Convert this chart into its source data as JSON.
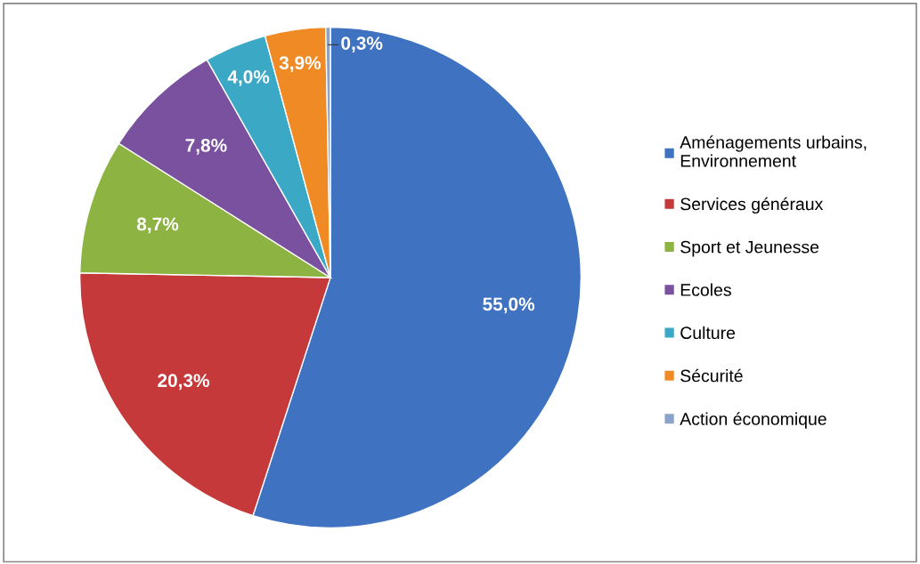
{
  "chart_data": {
    "type": "pie",
    "categories": [
      "Aménagements urbains,\nEnvironnement",
      "Services généraux",
      "Sport et Jeunesse",
      "Ecoles",
      "Culture",
      "Sécurité",
      "Action économique"
    ],
    "values": [
      55.0,
      20.3,
      8.7,
      7.8,
      4.0,
      3.9,
      0.3
    ],
    "colors": [
      "#3f72c0",
      "#c5393a",
      "#8db343",
      "#7a519e",
      "#3ba9c6",
      "#f08a24",
      "#8aa3c8"
    ],
    "value_labels": [
      "55,0%",
      "20,3%",
      "8,7%",
      "7,8%",
      "4,0%",
      "3,9%",
      "0,3%"
    ],
    "legend": "right"
  }
}
